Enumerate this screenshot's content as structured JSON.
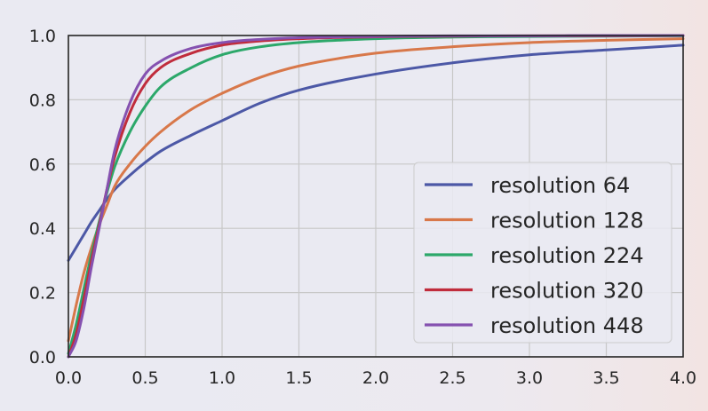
{
  "chart_data": {
    "type": "line",
    "title": "",
    "xlabel": "",
    "ylabel": "",
    "xlim": [
      0.0,
      4.0
    ],
    "ylim": [
      0.0,
      1.0
    ],
    "grid": true,
    "legend_position": "center-right",
    "x_ticks": [
      "0.0",
      "0.5",
      "1.0",
      "1.5",
      "2.0",
      "2.5",
      "3.0",
      "3.5",
      "4.0"
    ],
    "y_ticks": [
      "0.0",
      "0.2",
      "0.4",
      "0.6",
      "0.8",
      "1.0"
    ],
    "x": [
      0.0,
      0.05,
      0.1,
      0.15,
      0.2,
      0.25,
      0.3,
      0.4,
      0.5,
      0.6,
      0.8,
      1.0,
      1.25,
      1.5,
      2.0,
      2.5,
      3.0,
      3.5,
      4.0
    ],
    "series": [
      {
        "name": "resolution 64",
        "color": "#4c58a6",
        "values": [
          0.3,
          0.34,
          0.38,
          0.42,
          0.455,
          0.49,
          0.52,
          0.565,
          0.605,
          0.64,
          0.69,
          0.735,
          0.79,
          0.83,
          0.88,
          0.915,
          0.94,
          0.955,
          0.97
        ]
      },
      {
        "name": "resolution 128",
        "color": "#d8784a",
        "values": [
          0.05,
          0.16,
          0.26,
          0.34,
          0.41,
          0.47,
          0.53,
          0.6,
          0.655,
          0.7,
          0.77,
          0.82,
          0.87,
          0.905,
          0.945,
          0.965,
          0.978,
          0.985,
          0.99
        ]
      },
      {
        "name": "resolution 224",
        "color": "#2ca86a",
        "values": [
          0.01,
          0.1,
          0.21,
          0.32,
          0.42,
          0.51,
          0.59,
          0.7,
          0.78,
          0.84,
          0.9,
          0.94,
          0.965,
          0.978,
          0.99,
          0.995,
          0.997,
          0.998,
          0.999
        ]
      },
      {
        "name": "resolution 320",
        "color": "#c02c3c",
        "values": [
          0.0,
          0.07,
          0.18,
          0.3,
          0.41,
          0.52,
          0.62,
          0.76,
          0.85,
          0.9,
          0.945,
          0.97,
          0.983,
          0.99,
          0.996,
          0.998,
          0.999,
          0.999,
          1.0
        ]
      },
      {
        "name": "resolution 448",
        "color": "#8551b0",
        "values": [
          0.0,
          0.05,
          0.15,
          0.28,
          0.4,
          0.52,
          0.64,
          0.79,
          0.88,
          0.92,
          0.96,
          0.978,
          0.988,
          0.993,
          0.997,
          0.999,
          0.999,
          1.0,
          1.0
        ]
      }
    ]
  }
}
